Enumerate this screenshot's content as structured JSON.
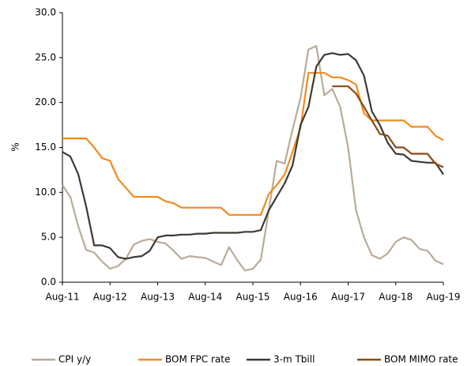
{
  "chart_data": {
    "type": "line",
    "y_label": "%",
    "categories": [
      "Aug-11",
      null,
      null,
      null,
      null,
      null,
      "Aug-12",
      null,
      null,
      null,
      null,
      null,
      "Aug-13",
      null,
      null,
      null,
      null,
      null,
      "Aug-14",
      null,
      null,
      null,
      null,
      null,
      "Aug-15",
      null,
      null,
      null,
      null,
      null,
      "Aug-16",
      null,
      null,
      null,
      null,
      null,
      "Aug-17",
      null,
      null,
      null,
      null,
      null,
      "Aug-18",
      null,
      null,
      null,
      null,
      null,
      "Aug-19"
    ],
    "series": [
      {
        "name": "CPI y/y",
        "color": "#b8ab99",
        "values": [
          10.8,
          9.5,
          6.2,
          3.6,
          3.3,
          2.3,
          1.5,
          1.8,
          2.6,
          4.2,
          4.6,
          4.8,
          4.5,
          4.3,
          3.5,
          2.6,
          2.9,
          2.8,
          2.7,
          2.3,
          1.9,
          3.9,
          2.5,
          1.3,
          1.5,
          2.5,
          8.0,
          13.5,
          13.2,
          17.0,
          20.5,
          25.9,
          26.3,
          20.8,
          21.5,
          19.5,
          15.0,
          8.0,
          5.0,
          3.0,
          2.6,
          3.2,
          4.5,
          5.0,
          4.7,
          3.7,
          3.5,
          2.4,
          2.0
        ]
      },
      {
        "name": "BOM FPC rate",
        "color": "#f28a1c",
        "values": [
          16,
          16,
          16,
          16,
          15,
          13.8,
          13.5,
          11.5,
          10.5,
          9.5,
          9.5,
          9.5,
          9.5,
          9.0,
          8.8,
          8.3,
          8.3,
          8.3,
          8.3,
          8.3,
          8.3,
          7.5,
          7.5,
          7.5,
          7.5,
          7.5,
          9.8,
          10.8,
          12,
          14.5,
          17.2,
          23.3,
          23.3,
          23.3,
          22.8,
          22.8,
          22.5,
          22,
          18.8,
          18,
          18,
          18,
          18,
          18,
          17.3,
          17.3,
          17.3,
          16.3,
          15.8
        ]
      },
      {
        "name": "3-m Tbill",
        "color": "#3d3a33",
        "values": [
          14.5,
          14,
          12,
          8.4,
          4.1,
          4.1,
          3.8,
          2.8,
          2.6,
          2.8,
          2.9,
          3.5,
          5.0,
          5.2,
          5.2,
          5.3,
          5.3,
          5.4,
          5.4,
          5.5,
          5.5,
          5.5,
          5.5,
          5.6,
          5.6,
          5.8,
          8.0,
          9.5,
          11.0,
          13.0,
          17.5,
          19.5,
          24.0,
          25.3,
          25.5,
          25.3,
          25.4,
          24.7,
          23.0,
          19.0,
          17.5,
          15.5,
          14.3,
          14.2,
          13.5,
          13.4,
          13.3,
          13.3,
          12.0
        ]
      },
      {
        "name": "BOM MIMO rate",
        "color": "#8b4a12",
        "values": [
          null,
          null,
          null,
          null,
          null,
          null,
          null,
          null,
          null,
          null,
          null,
          null,
          null,
          null,
          null,
          null,
          null,
          null,
          null,
          null,
          null,
          null,
          null,
          null,
          null,
          null,
          null,
          null,
          null,
          null,
          null,
          null,
          null,
          null,
          21.8,
          21.8,
          21.8,
          21.0,
          19.5,
          18.0,
          16.5,
          16.3,
          15.0,
          15.0,
          14.3,
          14.3,
          14.3,
          13.2,
          12.8
        ]
      }
    ],
    "ylim": [
      0,
      30
    ],
    "yticks": [
      {
        "value": 0,
        "label": "0.0"
      },
      {
        "value": 5,
        "label": "5.0"
      },
      {
        "value": 10,
        "label": "10.0"
      },
      {
        "value": 15,
        "label": "15.0"
      },
      {
        "value": 20,
        "label": "20.0"
      },
      {
        "value": 25,
        "label": "25.0"
      },
      {
        "value": 30,
        "label": "30.0"
      }
    ],
    "grid": false,
    "legend": "bottom"
  }
}
